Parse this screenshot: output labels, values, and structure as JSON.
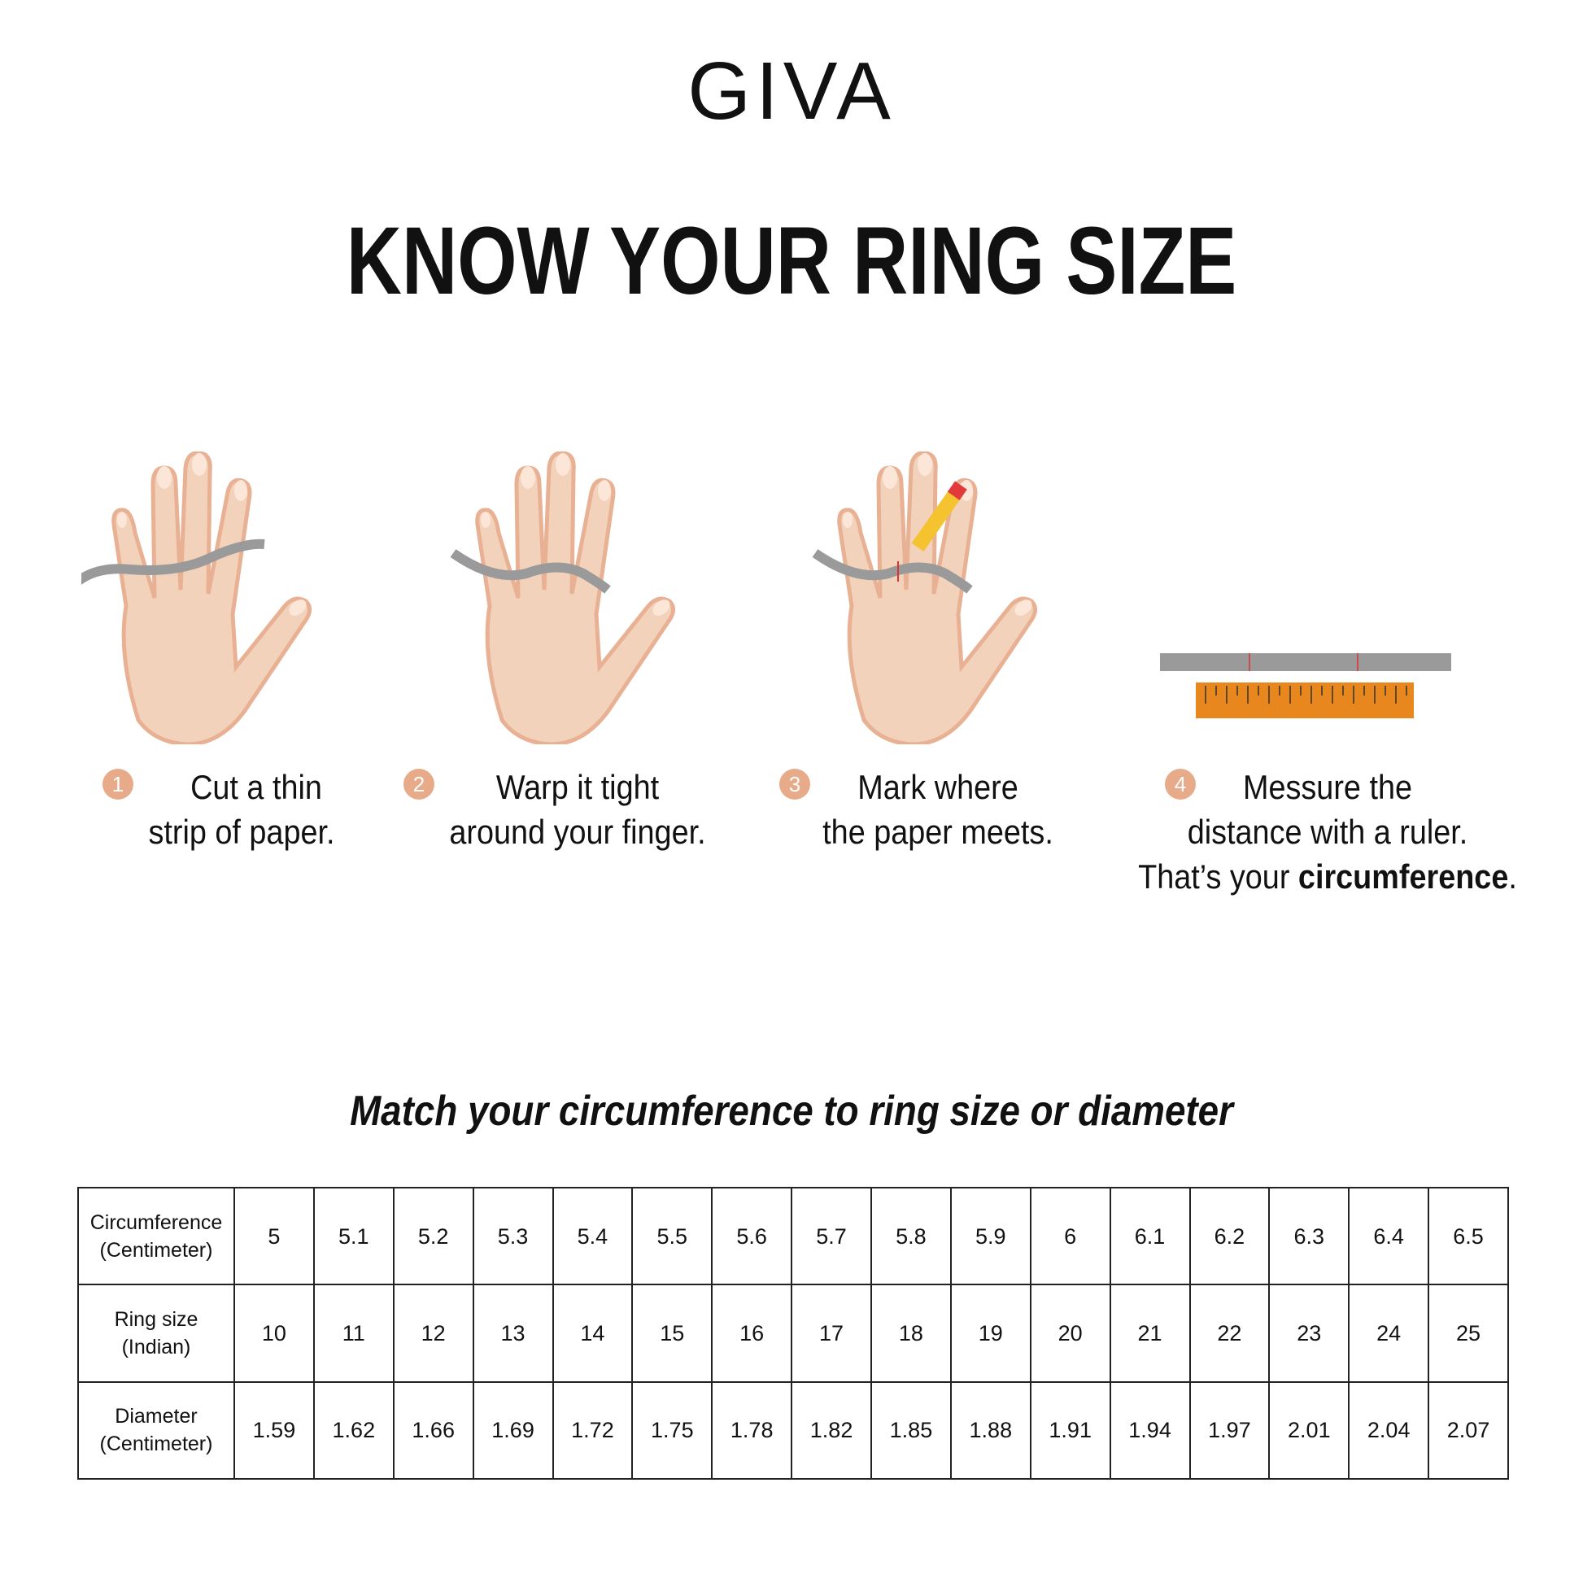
{
  "brand": "GIVA",
  "title": "KNOW YOUR RING SIZE",
  "steps": [
    {
      "number": "1",
      "line1": "Cut a thin",
      "line2": "strip of paper."
    },
    {
      "number": "2",
      "line1": "Warp it tight",
      "line2": "around your finger."
    },
    {
      "number": "3",
      "line1": "Mark where",
      "line2": "the paper meets."
    },
    {
      "number": "4",
      "line1": "Messure the",
      "line2": "distance with a ruler.",
      "line3_prefix": "That’s your ",
      "line3_bold": "circumference",
      "line3_suffix": "."
    }
  ],
  "subtitle": "Match your circumference to ring size or diameter",
  "table": {
    "rows": [
      {
        "label1": "Circumference",
        "label2": "(Centimeter)",
        "values": [
          "5",
          "5.1",
          "5.2",
          "5.3",
          "5.4",
          "5.5",
          "5.6",
          "5.7",
          "5.8",
          "5.9",
          "6",
          "6.1",
          "6.2",
          "6.3",
          "6.4",
          "6.5"
        ]
      },
      {
        "label1": "Ring size",
        "label2": "(Indian)",
        "values": [
          "10",
          "11",
          "12",
          "13",
          "14",
          "15",
          "16",
          "17",
          "18",
          "19",
          "20",
          "21",
          "22",
          "23",
          "24",
          "25"
        ]
      },
      {
        "label1": "Diameter",
        "label2": "(Centimeter)",
        "values": [
          "1.59",
          "1.62",
          "1.66",
          "1.69",
          "1.72",
          "1.75",
          "1.78",
          "1.82",
          "1.85",
          "1.88",
          "1.91",
          "1.94",
          "1.97",
          "2.01",
          "2.04",
          "2.07"
        ]
      }
    ]
  },
  "colors": {
    "skin": "#f3d2bb",
    "skin_shadow": "#e8b193",
    "paper_strip": "#9a9a9a",
    "ruler": "#e8871e",
    "step_badge": "#e8ab8a"
  }
}
